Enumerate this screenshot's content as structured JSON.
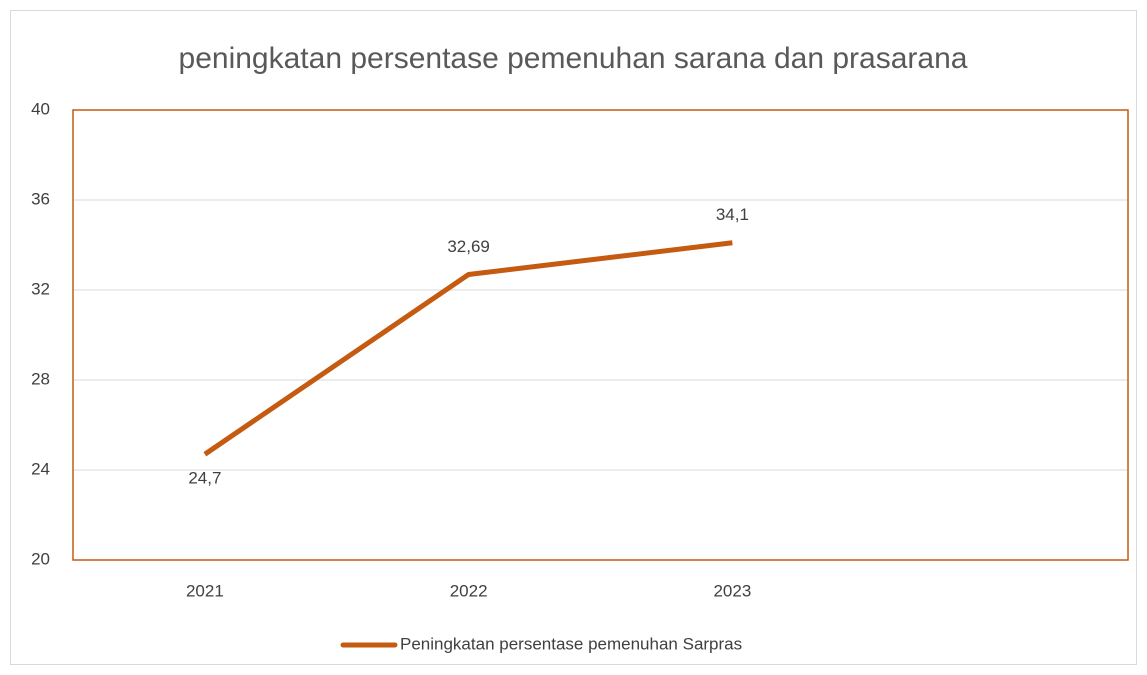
{
  "chart_data": {
    "type": "line",
    "title": "peningkatan persentase pemenuhan sarana dan prasarana",
    "categories": [
      "2021",
      "2022",
      "2023",
      null
    ],
    "series": [
      {
        "name": "Peningkatan persentase pemenuhan Sarpras",
        "color": "#c55a11",
        "values": [
          24.7,
          32.69,
          34.1,
          null
        ],
        "value_labels": [
          "24,7",
          "32,69",
          "34,1",
          null
        ]
      }
    ],
    "ylim": [
      20,
      40
    ],
    "yticks": [
      20,
      24,
      28,
      32,
      36,
      40
    ],
    "grid": true,
    "legend": "bottom"
  }
}
